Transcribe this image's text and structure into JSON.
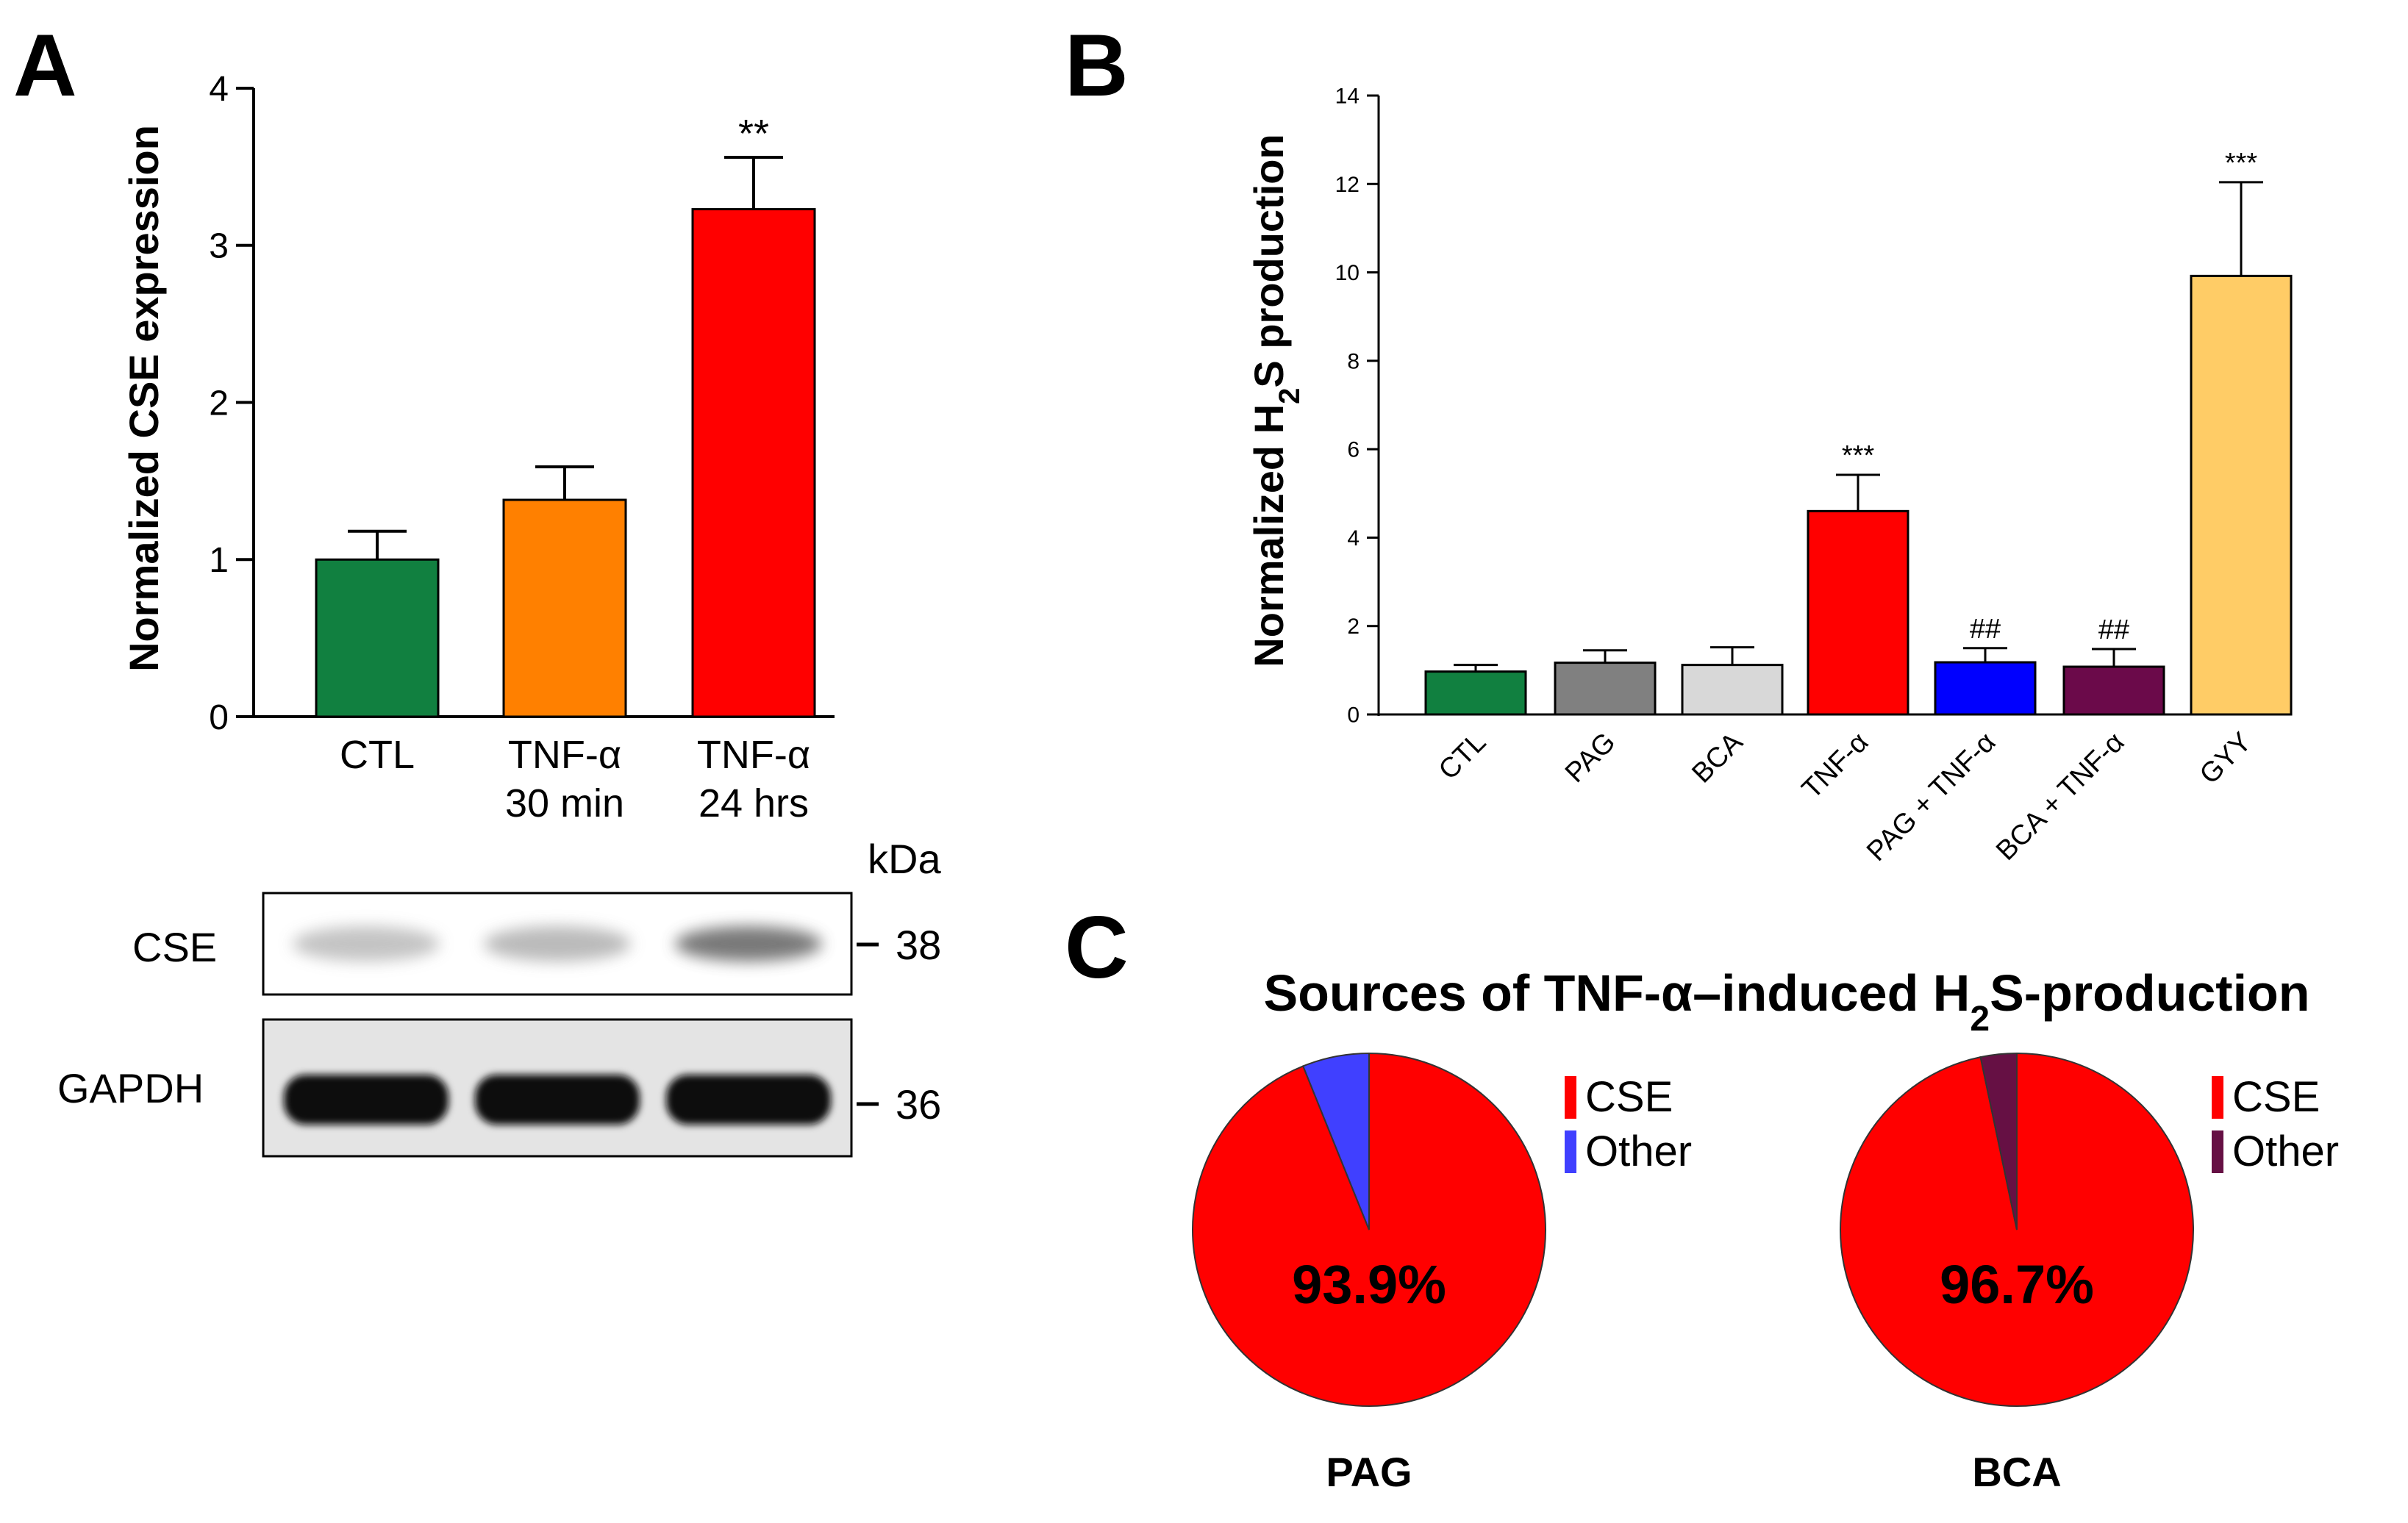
{
  "panels": {
    "A": "A",
    "B": "B",
    "C": "C"
  },
  "chart_data": [
    {
      "type": "bar",
      "panel": "A",
      "title": "",
      "ylabel": "Normalized CSE expression",
      "xlabel": "",
      "ylim": [
        0,
        4
      ],
      "yticks": [
        0,
        1,
        2,
        3,
        4
      ],
      "categories": [
        [
          "CTL"
        ],
        [
          "TNF-α",
          "30 min"
        ],
        [
          "TNF-α",
          "24 hrs"
        ]
      ],
      "values": [
        1.0,
        1.38,
        3.23
      ],
      "errors": [
        0.18,
        0.21,
        0.33
      ],
      "colors": [
        "#118040",
        "#ff8000",
        "#ff0000"
      ],
      "annotations": [
        "",
        "",
        "**"
      ]
    },
    {
      "type": "bar",
      "panel": "B",
      "title": "",
      "ylabel_parts": [
        "Normalized H",
        "2",
        "S production"
      ],
      "xlabel": "",
      "ylim": [
        0,
        14
      ],
      "yticks": [
        0,
        2,
        4,
        6,
        8,
        10,
        12,
        14
      ],
      "categories": [
        "CTL",
        "PAG",
        "BCA",
        "TNF-α",
        "PAG + TNF-α",
        "BCA + TNF-α",
        "GYY"
      ],
      "values": [
        0.97,
        1.17,
        1.12,
        4.6,
        1.18,
        1.08,
        9.92
      ],
      "errors": [
        0.15,
        0.28,
        0.4,
        0.82,
        0.32,
        0.4,
        2.12
      ],
      "colors": [
        "#118040",
        "#808080",
        "#d8d8d8",
        "#ff0000",
        "#0000ff",
        "#6b0a4a",
        "#ffcc66"
      ],
      "annotations": [
        "",
        "",
        "",
        "***",
        "##",
        "##",
        "***"
      ]
    },
    {
      "type": "pie",
      "panel": "C",
      "title_parts": [
        "Sources of TNF-α–induced H",
        "2",
        "S-production"
      ],
      "caption": "PAG",
      "labels": [
        "CSE",
        "Other"
      ],
      "values": [
        93.9,
        6.1
      ],
      "colors": [
        "#ff0000",
        "#4040ff"
      ],
      "center_label": "93.9%"
    },
    {
      "type": "pie",
      "panel": "C",
      "caption": "BCA",
      "labels": [
        "CSE",
        "Other"
      ],
      "values": [
        96.7,
        3.3
      ],
      "colors": [
        "#ff0000",
        "#661044"
      ],
      "center_label": "96.7%"
    }
  ],
  "western_blot": {
    "kda_label": "kDa",
    "rows": [
      {
        "label": "CSE",
        "marker": "38",
        "band_intensity": [
          0.2,
          0.25,
          0.6
        ]
      },
      {
        "label": "GAPDH",
        "marker": "36",
        "band_intensity": [
          1.0,
          1.0,
          1.0
        ]
      }
    ]
  }
}
